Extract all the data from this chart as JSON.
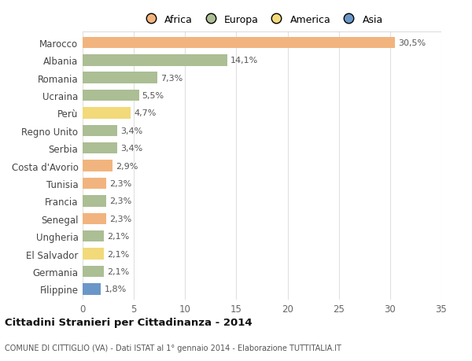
{
  "countries": [
    "Marocco",
    "Albania",
    "Romania",
    "Ucraina",
    "Perù",
    "Regno Unito",
    "Serbia",
    "Costa d'Avorio",
    "Tunisia",
    "Francia",
    "Senegal",
    "Ungheria",
    "El Salvador",
    "Germania",
    "Filippine"
  ],
  "values": [
    30.5,
    14.1,
    7.3,
    5.5,
    4.7,
    3.4,
    3.4,
    2.9,
    2.3,
    2.3,
    2.3,
    2.1,
    2.1,
    2.1,
    1.8
  ],
  "labels": [
    "30,5%",
    "14,1%",
    "7,3%",
    "5,5%",
    "4,7%",
    "3,4%",
    "3,4%",
    "2,9%",
    "2,3%",
    "2,3%",
    "2,3%",
    "2,1%",
    "2,1%",
    "2,1%",
    "1,8%"
  ],
  "continents": [
    "Africa",
    "Europa",
    "Europa",
    "Europa",
    "America",
    "Europa",
    "Europa",
    "Africa",
    "Africa",
    "Europa",
    "Africa",
    "Europa",
    "America",
    "Europa",
    "Asia"
  ],
  "colors": {
    "Africa": "#F2B47E",
    "Europa": "#ABBE94",
    "America": "#F2D97A",
    "Asia": "#6B96C8"
  },
  "legend_labels": [
    "Africa",
    "Europa",
    "America",
    "Asia"
  ],
  "legend_colors": [
    "#F2B47E",
    "#ABBE94",
    "#F2D97A",
    "#6B96C8"
  ],
  "title": "Cittadini Stranieri per Cittadinanza - 2014",
  "subtitle": "COMUNE DI CITTIGLIO (VA) - Dati ISTAT al 1° gennaio 2014 - Elaborazione TUTTITALIA.IT",
  "xlim": [
    0,
    35
  ],
  "xticks": [
    0,
    5,
    10,
    15,
    20,
    25,
    30,
    35
  ],
  "bg_color": "#ffffff",
  "grid_color": "#e0e0e0",
  "bar_height": 0.65
}
